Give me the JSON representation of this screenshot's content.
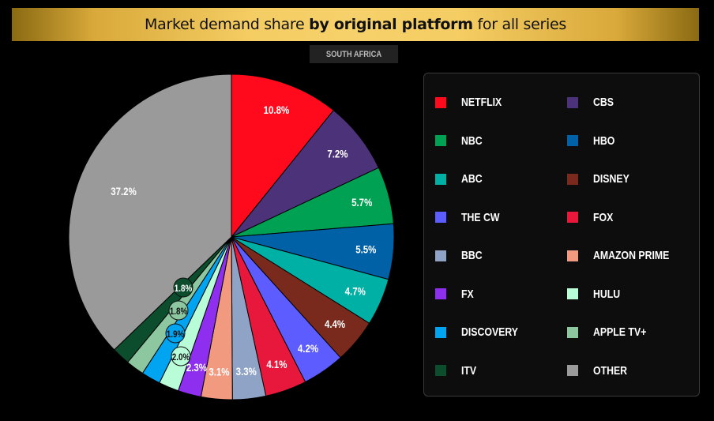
{
  "header": {
    "title_pre": "Market demand share ",
    "title_bold": "by original platform",
    "title_post": " for all series",
    "region": "SOUTH AFRICA"
  },
  "chart_data": {
    "type": "pie",
    "title": "Market demand share by original platform for all series",
    "subtitle": "SOUTH AFRICA",
    "slices": [
      {
        "name": "NETFLIX",
        "value": 10.8,
        "label": "10.8%",
        "color": "#ff0a1c"
      },
      {
        "name": "CBS",
        "value": 7.2,
        "label": "7.2%",
        "color": "#4b3279"
      },
      {
        "name": "NBC",
        "value": 5.7,
        "label": "5.7%",
        "color": "#00a152"
      },
      {
        "name": "HBO",
        "value": 5.5,
        "label": "5.5%",
        "color": "#0061a6"
      },
      {
        "name": "ABC",
        "value": 4.7,
        "label": "4.7%",
        "color": "#00b0a5"
      },
      {
        "name": "DISNEY",
        "value": 4.4,
        "label": "4.4%",
        "color": "#7a2a1c"
      },
      {
        "name": "THE CW",
        "value": 4.2,
        "label": "4.2%",
        "color": "#5c5cff"
      },
      {
        "name": "FOX",
        "value": 4.1,
        "label": "4.1%",
        "color": "#e8183c"
      },
      {
        "name": "BBC",
        "value": 3.3,
        "label": "3.3%",
        "color": "#8fa3c6"
      },
      {
        "name": "AMAZON PRIME",
        "value": 3.1,
        "label": "3.1%",
        "color": "#f29a80"
      },
      {
        "name": "FX",
        "value": 2.3,
        "label": "2.3%",
        "color": "#8e2ff0"
      },
      {
        "name": "HULU",
        "value": 2.0,
        "label": "2.0%",
        "color": "#b8fcd8"
      },
      {
        "name": "DISCOVERY",
        "value": 1.9,
        "label": "1.9%",
        "color": "#00a4f0"
      },
      {
        "name": "APPLE TV+",
        "value": 1.8,
        "label": "1.8%",
        "color": "#8cc7a0"
      },
      {
        "name": "ITV",
        "value": 1.8,
        "label": "1.8%",
        "color": "#0b4d2c"
      },
      {
        "name": "OTHER",
        "value": 37.2,
        "label": "37.2%",
        "color": "#9a9a9a"
      }
    ],
    "legend": {
      "placement": "right",
      "columns": [
        [
          "NETFLIX",
          "NBC",
          "ABC",
          "THE CW",
          "BBC",
          "FX",
          "DISCOVERY",
          "ITV"
        ],
        [
          "CBS",
          "HBO",
          "DISNEY",
          "FOX",
          "AMAZON PRIME",
          "HULU",
          "APPLE TV+",
          "OTHER"
        ]
      ]
    }
  }
}
